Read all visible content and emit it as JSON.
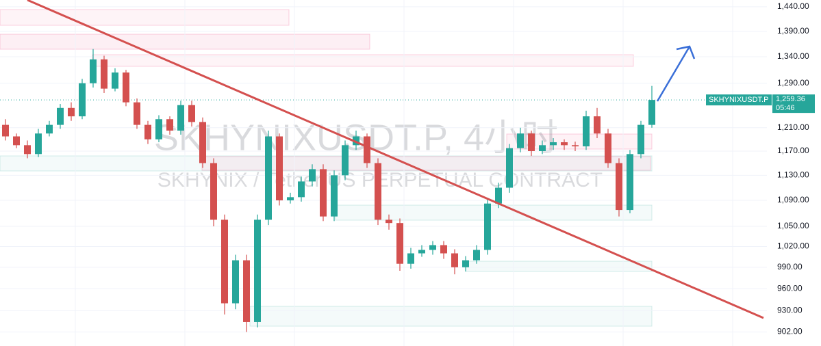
{
  "chart_data": {
    "type": "candlestick",
    "title": "SKHYNIXUSDT.P, 4小时",
    "subtitle": "SKHYNIX / Tether US PERPETUAL CONTRACT",
    "up_color": "#26a69a",
    "down_color": "#d4504f",
    "log_scale": true,
    "grid": true,
    "ylim": [
      884,
      1454
    ],
    "yticks": [
      {
        "value": 1440,
        "label": "1,440.00"
      },
      {
        "value": 1390,
        "label": "1,390.00"
      },
      {
        "value": 1340,
        "label": "1,340.00"
      },
      {
        "value": 1290,
        "label": "1,290.00"
      },
      {
        "value": 1210,
        "label": "1,210.00"
      },
      {
        "value": 1170,
        "label": "1,170.00"
      },
      {
        "value": 1130,
        "label": "1,130.00"
      },
      {
        "value": 1090,
        "label": "1,090.00"
      },
      {
        "value": 1050,
        "label": "1,050.00"
      },
      {
        "value": 1020,
        "label": "1,020.00"
      },
      {
        "value": 990,
        "label": "990.00"
      },
      {
        "value": 960,
        "label": "960.00"
      },
      {
        "value": 930,
        "label": "930.00"
      },
      {
        "value": 902,
        "label": "902.00"
      }
    ],
    "open": [
      1215,
      1195,
      1180,
      1165,
      1200,
      1215,
      1245,
      1230,
      1290,
      1335,
      1280,
      1310,
      1255,
      1215,
      1190,
      1225,
      1205,
      1250,
      1220,
      1150,
      1060,
      940,
      1000,
      915,
      1060,
      1195,
      1090,
      1095,
      1120,
      1140,
      1065,
      1130,
      1180,
      1195,
      1150,
      1060,
      1055,
      995,
      1010,
      1015,
      1022,
      1010,
      990,
      1000,
      1015,
      1085,
      1110,
      1175,
      1200,
      1170,
      1180,
      1185,
      1180,
      1178,
      1230,
      1200,
      1150,
      1075,
      1165,
      1215
    ],
    "high": [
      1225,
      1200,
      1188,
      1208,
      1222,
      1252,
      1255,
      1298,
      1355,
      1342,
      1318,
      1315,
      1262,
      1222,
      1232,
      1230,
      1258,
      1258,
      1228,
      1158,
      1068,
      1008,
      1008,
      1068,
      1205,
      1200,
      1102,
      1128,
      1148,
      1148,
      1138,
      1188,
      1205,
      1200,
      1158,
      1068,
      1062,
      1018,
      1022,
      1028,
      1028,
      1016,
      1006,
      1022,
      1092,
      1118,
      1182,
      1210,
      1205,
      1188,
      1192,
      1190,
      1186,
      1240,
      1245,
      1208,
      1158,
      1172,
      1222,
      1285
    ],
    "low": [
      1188,
      1175,
      1158,
      1160,
      1195,
      1208,
      1222,
      1225,
      1282,
      1272,
      1275,
      1248,
      1208,
      1182,
      1185,
      1198,
      1198,
      1212,
      1142,
      1050,
      925,
      932,
      902,
      908,
      1052,
      1082,
      1085,
      1088,
      1112,
      1058,
      1058,
      1122,
      1172,
      1142,
      1052,
      1045,
      985,
      988,
      1005,
      1008,
      1002,
      980,
      984,
      995,
      1008,
      1078,
      1102,
      1168,
      1162,
      1165,
      1172,
      1172,
      1170,
      1172,
      1192,
      1142,
      1065,
      1070,
      1158,
      1210
    ],
    "close": [
      1195,
      1180,
      1165,
      1200,
      1215,
      1245,
      1230,
      1290,
      1335,
      1280,
      1310,
      1255,
      1215,
      1190,
      1225,
      1205,
      1250,
      1220,
      1150,
      1060,
      940,
      1000,
      915,
      1060,
      1195,
      1090,
      1095,
      1120,
      1140,
      1065,
      1130,
      1180,
      1195,
      1150,
      1060,
      1055,
      995,
      1010,
      1015,
      1022,
      1010,
      990,
      1000,
      1015,
      1085,
      1110,
      1175,
      1200,
      1170,
      1180,
      1185,
      1180,
      1178,
      1230,
      1200,
      1150,
      1075,
      1165,
      1215,
      1259.36
    ],
    "last_label": {
      "symbol": "SKHYNIXUSDT.P",
      "price": "1,259.36",
      "countdown": "05:46"
    }
  }
}
